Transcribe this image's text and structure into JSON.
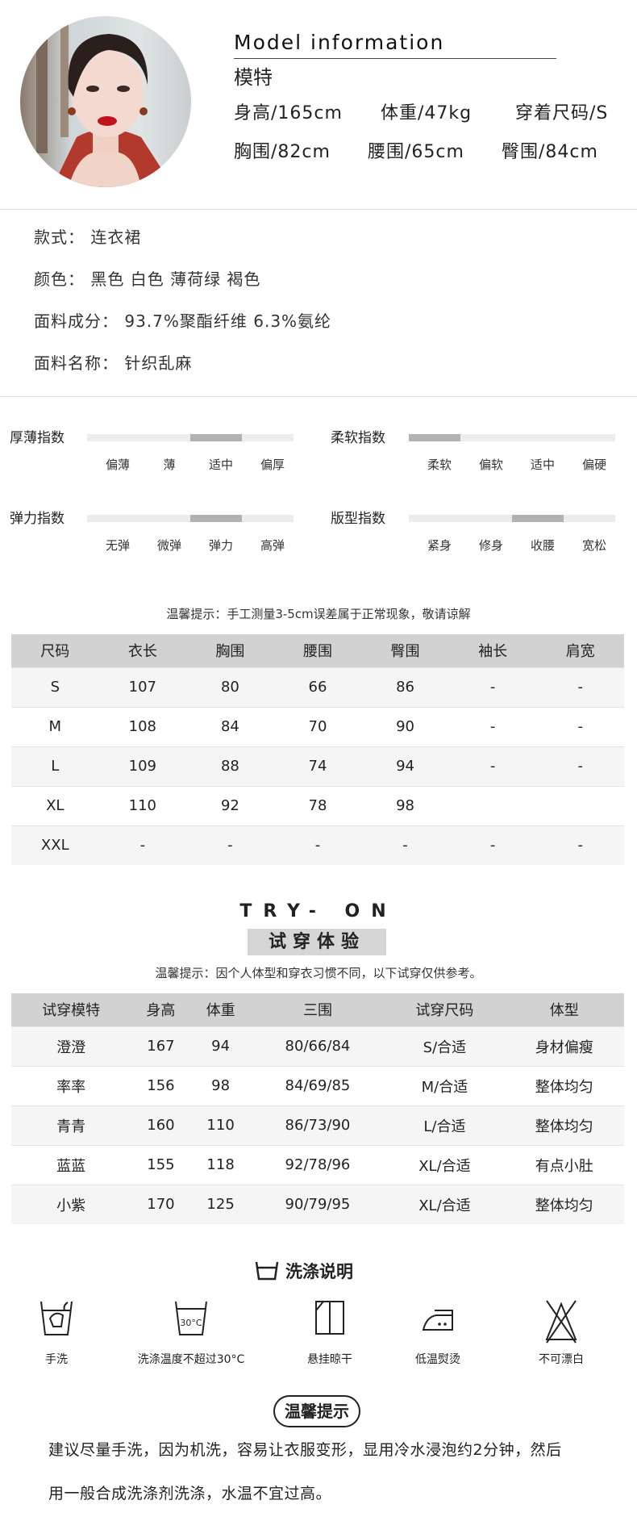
{
  "model": {
    "title": "Model information",
    "subtitle": "模特",
    "height": "身高/165cm",
    "weight": "体重/47kg",
    "size": "穿着尺码/S",
    "bust": "胸围/82cm",
    "waist": "腰围/65cm",
    "hip": "臀围/84cm"
  },
  "product": {
    "style": "款式：  连衣裙",
    "colors": "颜色：  黑色  白色  薄荷绿  褐色",
    "composition": "面料成分：  93.7%聚酯纤维  6.3%氨纶",
    "fabric": "面料名称：  针织乱麻"
  },
  "indices": [
    {
      "label": "厚薄指数",
      "options": [
        "偏薄",
        "薄",
        "适中",
        "偏厚"
      ],
      "selected_index": 2
    },
    {
      "label": "柔软指数",
      "options": [
        "柔软",
        "偏软",
        "适中",
        "偏硬"
      ],
      "selected_index": 0
    },
    {
      "label": "弹力指数",
      "options": [
        "无弹",
        "微弹",
        "弹力",
        "高弹"
      ],
      "selected_index": 2
    },
    {
      "label": "版型指数",
      "options": [
        "紧身",
        "修身",
        "收腰",
        "宽松"
      ],
      "selected_index": 2
    }
  ],
  "size_note": "温馨提示：手工测量3-5cm误差属于正常现象，敬请谅解",
  "size_table": {
    "headers": [
      "尺码",
      "衣长",
      "胸围",
      "腰围",
      "臀围",
      "袖长",
      "肩宽"
    ],
    "rows": [
      [
        "S",
        "107",
        "80",
        "66",
        "86",
        "-",
        "-"
      ],
      [
        "M",
        "108",
        "84",
        "70",
        "90",
        "-",
        "-"
      ],
      [
        "L",
        "109",
        "88",
        "74",
        "94",
        "-",
        "-"
      ],
      [
        "XL",
        "110",
        "92",
        "78",
        "98",
        "",
        ""
      ],
      [
        "XXL",
        "-",
        "-",
        "-",
        "-",
        "-",
        "-"
      ]
    ]
  },
  "tryon": {
    "title_en": "TRY- ON",
    "title_cn": "试穿体验",
    "note": "温馨提示：因个人体型和穿衣习惯不同，以下试穿仅供参考。",
    "headers": [
      "试穿模特",
      "身高",
      "体重",
      "三围",
      "试穿尺码",
      "体型"
    ],
    "rows": [
      [
        "澄澄",
        "167",
        "94",
        "80/66/84",
        "S/合适",
        "身材偏瘦"
      ],
      [
        "率率",
        "156",
        "98",
        "84/69/85",
        "M/合适",
        "整体均匀"
      ],
      [
        "青青",
        "160",
        "110",
        "86/73/90",
        "L/合适",
        "整体均匀"
      ],
      [
        "蓝蓝",
        "155",
        "118",
        "92/78/96",
        "XL/合适",
        "有点小肚"
      ],
      [
        "小紫",
        "170",
        "125",
        "90/79/95",
        "XL/合适",
        "整体均匀"
      ]
    ]
  },
  "wash": {
    "title": "洗涤说明",
    "items": [
      {
        "icon": "hand-wash-icon",
        "label": "手洗"
      },
      {
        "icon": "wash-30c-icon",
        "label": "洗涤温度不超过30°C",
        "icon_text": "30°C"
      },
      {
        "icon": "hang-dry-icon",
        "label": "悬挂晾干"
      },
      {
        "icon": "low-iron-icon",
        "label": "低温熨烫"
      },
      {
        "icon": "no-bleach-icon",
        "label": "不可漂白"
      }
    ]
  },
  "tips": {
    "title": "温馨提示",
    "line1": "建议尽量手洗，因为机洗，容易让衣服变形，显用冷水浸泡约2分钟，然后",
    "line2": "用一般合成洗涤剂洗涤，水温不宜过高。"
  }
}
